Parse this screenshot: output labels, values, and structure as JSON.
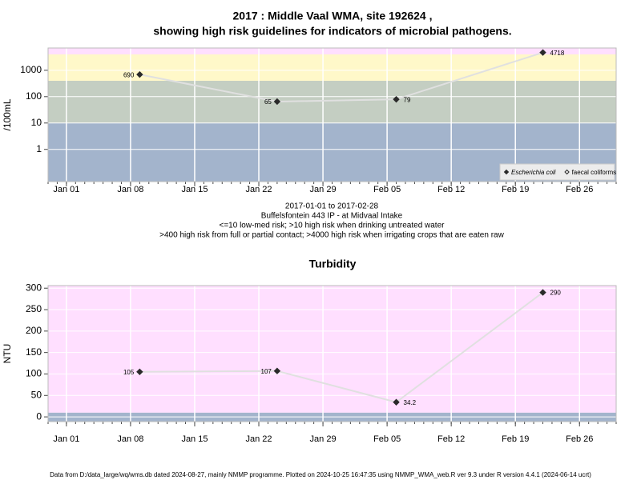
{
  "chart_data": [
    {
      "type": "line",
      "title": [
        "2017 : Middle Vaal WMA, site 192624 ,",
        "showing high risk guidelines for indicators of microbial pathogens."
      ],
      "ylabel": "/100mL",
      "log_y": true,
      "x": [
        "2017-01-09",
        "2017-01-24",
        "2017-02-06",
        "2017-02-22"
      ],
      "xlim": [
        "2016-12-30",
        "2017-03-02"
      ],
      "xticks": [
        {
          "value": "2017-01-01",
          "label": "Jan 01"
        },
        {
          "value": "2017-01-08",
          "label": "Jan 08"
        },
        {
          "value": "2017-01-15",
          "label": "Jan 15"
        },
        {
          "value": "2017-01-22",
          "label": "Jan 22"
        },
        {
          "value": "2017-01-29",
          "label": "Jan 29"
        },
        {
          "value": "2017-02-05",
          "label": "Feb 05"
        },
        {
          "value": "2017-02-12",
          "label": "Feb 12"
        },
        {
          "value": "2017-02-19",
          "label": "Feb 19"
        },
        {
          "value": "2017-02-26",
          "label": "Feb 26"
        }
      ],
      "ylim": [
        0.06,
        7000
      ],
      "yticks": [
        1,
        10,
        100,
        1000
      ],
      "grid": true,
      "band_breaks": [
        10,
        400,
        4000
      ],
      "band_colors": [
        "#a3b4cc",
        "#c4cec2",
        "#fff8c9",
        "#ffdfff"
      ],
      "series": [
        {
          "name": "Escherichia coli",
          "color": "#2a2a2a",
          "line_color": "#e0e0e0",
          "marker": "filled",
          "values": [
            690,
            65,
            79,
            4718
          ]
        },
        {
          "name": "faecal coliforms",
          "color": "#2a2a2a",
          "line_color": "#e0e0e0",
          "marker": "hollow",
          "values": [
            null,
            null,
            null,
            null
          ]
        }
      ],
      "legend": "bottom right",
      "notes": [
        "2017-01-01 to 2017-02-28",
        "Buffelsfontein 443 IP - at Midvaal Intake",
        "<=10 low-med risk; >10 high risk when drinking untreated water",
        ">400 high risk from full or partial contact; >4000 high risk when irrigating crops that are eaten raw"
      ]
    },
    {
      "type": "line",
      "title": [
        "Turbidity"
      ],
      "ylabel": "NTU",
      "log_y": false,
      "x": [
        "2017-01-09",
        "2017-01-24",
        "2017-02-06",
        "2017-02-22"
      ],
      "xlim": [
        "2016-12-30",
        "2017-03-02"
      ],
      "xticks": [
        {
          "value": "2017-01-01",
          "label": "Jan 01"
        },
        {
          "value": "2017-01-08",
          "label": "Jan 08"
        },
        {
          "value": "2017-01-15",
          "label": "Jan 15"
        },
        {
          "value": "2017-01-22",
          "label": "Jan 22"
        },
        {
          "value": "2017-01-29",
          "label": "Jan 29"
        },
        {
          "value": "2017-02-05",
          "label": "Feb 05"
        },
        {
          "value": "2017-02-12",
          "label": "Feb 12"
        },
        {
          "value": "2017-02-19",
          "label": "Feb 19"
        },
        {
          "value": "2017-02-26",
          "label": "Feb 26"
        }
      ],
      "ylim": [
        -11,
        306
      ],
      "yticks": [
        0,
        50,
        100,
        150,
        200,
        250,
        300
      ],
      "grid": true,
      "band_breaks": [
        10
      ],
      "band_colors": [
        "#a3b4cc",
        "#ffdfff"
      ],
      "series": [
        {
          "name": "Turbidity",
          "color": "#2a2a2a",
          "line_color": "#e0e0e0",
          "marker": "filled",
          "values": [
            105,
            107,
            34.2,
            290
          ]
        }
      ]
    }
  ],
  "footer": "Data from D:/data_large/wq/wms.db dated 2024-08-27, mainly NMMP programme. Plotted on 2024-10-25 16:47:35 using NMMP_WMA_web.R ver 9.3 under R version 4.4.1 (2024-06-14 ucrt)"
}
